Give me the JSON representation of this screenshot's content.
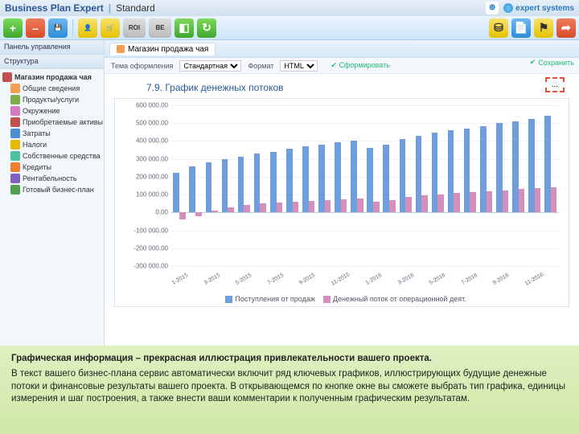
{
  "titlebar": {
    "app": "Business Plan Expert",
    "mode": "Standard",
    "vendor": "expert systems"
  },
  "toolbar": {
    "buttons": [
      {
        "name": "add",
        "glyph": "+",
        "cls": "green"
      },
      {
        "name": "delete",
        "glyph": "–",
        "cls": "red"
      },
      {
        "name": "save",
        "glyph": "💾",
        "cls": "blue"
      },
      {
        "name": "sep"
      },
      {
        "name": "user",
        "glyph": "👤",
        "cls": "yellow"
      },
      {
        "name": "cart",
        "glyph": "🛒",
        "cls": "yellow"
      },
      {
        "name": "roi",
        "glyph": "ROI",
        "cls": "grey wide"
      },
      {
        "name": "breakeven",
        "glyph": "BE",
        "cls": "grey wide"
      },
      {
        "name": "rubik",
        "glyph": "◧",
        "cls": "green"
      },
      {
        "name": "refresh",
        "glyph": "↻",
        "cls": "green"
      }
    ],
    "right": [
      {
        "name": "coins",
        "glyph": "⛁",
        "cls": "yellow"
      },
      {
        "name": "doc",
        "glyph": "📄",
        "cls": "blue"
      },
      {
        "name": "flag",
        "glyph": "⚑",
        "cls": "yellow"
      },
      {
        "name": "export",
        "glyph": "➦",
        "cls": "red"
      }
    ]
  },
  "sidebar": {
    "panel_header": "Панель управления",
    "search_header": "Структура",
    "root": "Магазин продажа чая",
    "items": [
      {
        "label": "Общие сведения",
        "color": "#f0a050"
      },
      {
        "label": "Продукты/услуги",
        "color": "#7caf4c"
      },
      {
        "label": "Окружение",
        "color": "#d47ac0"
      },
      {
        "label": "Приобретаемые активы",
        "color": "#c05050"
      },
      {
        "label": "Затраты",
        "color": "#4c8fd4"
      },
      {
        "label": "Налоги",
        "color": "#e6b800"
      },
      {
        "label": "Собственные средства",
        "color": "#4cc0a0"
      },
      {
        "label": "Кредиты",
        "color": "#f08030"
      },
      {
        "label": "Рентабельность",
        "color": "#8060c0"
      },
      {
        "label": "Готовый бизнес-план",
        "color": "#50a050"
      }
    ]
  },
  "main": {
    "tab": "Магазин продажа чая",
    "optbar": {
      "theme_lbl": "Тема оформления",
      "theme_val": "Стандартная",
      "fmt_lbl": "Формат",
      "fmt_val": "HTML",
      "build": "Сформировать"
    },
    "save_label": "Сохранить",
    "callout": "..."
  },
  "chart": {
    "title": "7.9. График денежных потоков",
    "ylim": [
      -300000,
      600000
    ],
    "ystep": 100000,
    "yticks": [
      "600 000,00",
      "500 000,00",
      "400 000,00",
      "300 000,00",
      "200 000,00",
      "100 000,00",
      "0,00",
      "-100 000,00",
      "-200 000,00",
      "-300 000,00"
    ],
    "series": [
      {
        "name": "Поступления от продаж",
        "color": "#6f9edb"
      },
      {
        "name": "Денежный поток от операционной деят.",
        "color": "#d48fbd"
      }
    ],
    "bg": "#ffffff",
    "grid": "#eef3f8",
    "periods": [
      {
        "x": "1-2015",
        "b": 220000,
        "p": -40000
      },
      {
        "x": "2-2015",
        "b": 260000,
        "p": -20000
      },
      {
        "x": "3-2015",
        "b": 280000,
        "p": 10000
      },
      {
        "x": "4-2015",
        "b": 300000,
        "p": 30000
      },
      {
        "x": "5-2015",
        "b": 310000,
        "p": 40000
      },
      {
        "x": "6-2015",
        "b": 330000,
        "p": 50000
      },
      {
        "x": "7-2015",
        "b": 340000,
        "p": 55000
      },
      {
        "x": "8-2015",
        "b": 355000,
        "p": 60000
      },
      {
        "x": "9-2015",
        "b": 370000,
        "p": 65000
      },
      {
        "x": "10-2015",
        "b": 380000,
        "p": 70000
      },
      {
        "x": "11-2015",
        "b": 395000,
        "p": 75000
      },
      {
        "x": "12-2015",
        "b": 400000,
        "p": 80000
      },
      {
        "x": "1-2016",
        "b": 360000,
        "p": 60000
      },
      {
        "x": "2-2016",
        "b": 380000,
        "p": 70000
      },
      {
        "x": "3-2016",
        "b": 410000,
        "p": 85000
      },
      {
        "x": "4-2016",
        "b": 430000,
        "p": 95000
      },
      {
        "x": "5-2016",
        "b": 445000,
        "p": 100000
      },
      {
        "x": "6-2016",
        "b": 460000,
        "p": 110000
      },
      {
        "x": "7-2016",
        "b": 470000,
        "p": 115000
      },
      {
        "x": "8-2016",
        "b": 485000,
        "p": 120000
      },
      {
        "x": "9-2016",
        "b": 500000,
        "p": 125000
      },
      {
        "x": "10-2016",
        "b": 510000,
        "p": 130000
      },
      {
        "x": "11-2016",
        "b": 525000,
        "p": 135000
      },
      {
        "x": "12-2016",
        "b": 540000,
        "p": 140000
      }
    ]
  },
  "caption": {
    "heading": "Графическая информация – прекрасная иллюстрация привлекательности вашего проекта.",
    "body": "В текст вашего бизнес-плана сервис автоматически включит ряд ключевых графиков, иллюстрирующих будущие денежные потоки и финансовые результаты вашего проекта. В открывающемся по кнопке окне вы сможете выбрать тип графика, единицы измерения и шаг построения, а также внести ваши комментарии к полученным графическим результатам."
  }
}
